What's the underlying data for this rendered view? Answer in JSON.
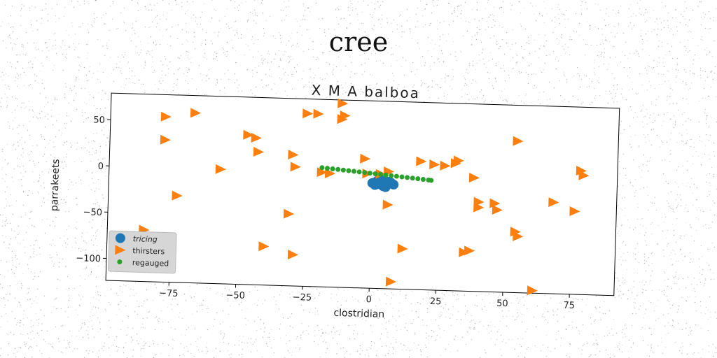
{
  "suptitle": "cree",
  "chart_data": {
    "type": "scatter",
    "title": "X M A balboa",
    "xlabel": "clostridian",
    "ylabel": "parrakeets",
    "xlim": [
      -95,
      88
    ],
    "ylim": [
      -117,
      72
    ],
    "xticks": [
      -75,
      -50,
      -25,
      0,
      25,
      50,
      75
    ],
    "xtick_labels": [
      "−75",
      "−50",
      "−25",
      "0",
      "25",
      "50",
      "75"
    ],
    "yticks": [
      -100,
      -50,
      0,
      50
    ],
    "ytick_labels": [
      "−100",
      "−50",
      "0",
      "50"
    ],
    "grid": false,
    "legend_position": "lower-left",
    "series": [
      {
        "name": "tricing",
        "marker": "circle",
        "color": "#1f77b4",
        "x": [
          0,
          1,
          2,
          3,
          4,
          5,
          6,
          7,
          8,
          2,
          4,
          6,
          1,
          3,
          5,
          7
        ],
        "y": [
          -10,
          -9,
          -11,
          -10,
          -8,
          -12,
          -10,
          -9,
          -11,
          -7,
          -13,
          -8,
          -12,
          -6,
          -14,
          -10
        ]
      },
      {
        "name": "thirsters",
        "marker": "triangle-right",
        "color": "#ff7f0e",
        "x": [
          -78,
          -67,
          -78,
          -47,
          -44,
          -43,
          -57,
          -73,
          -30,
          -29,
          -31,
          -40,
          -29,
          -85,
          -25,
          -21,
          -12,
          -12,
          -11,
          -19,
          -16,
          -3,
          -2,
          3,
          6,
          6,
          12,
          18,
          23,
          27,
          31,
          32,
          35,
          37,
          38,
          40,
          40,
          46,
          47,
          54,
          54,
          55,
          68,
          76,
          78,
          79,
          8,
          61
        ],
        "y": [
          55,
          60,
          30,
          38,
          35,
          20,
          0,
          -30,
          18,
          5,
          -46,
          -82,
          -90,
          -68,
          63,
          63,
          75,
          58,
          62,
          0,
          -1,
          16,
          0,
          0,
          3,
          -33,
          -80,
          15,
          12,
          11,
          14,
          17,
          -82,
          -80,
          -1,
          -27,
          -33,
          -28,
          -35,
          40,
          -58,
          -63,
          -25,
          -34,
          10,
          5,
          -116,
          -121
        ]
      },
      {
        "name": "regauged",
        "marker": "point",
        "color": "#2ca02c",
        "x": [
          -19,
          -17,
          -15,
          -13,
          -11,
          -9,
          -7,
          -5,
          -3,
          -1,
          1,
          3,
          5,
          7,
          9,
          11,
          13,
          15,
          17,
          19,
          21,
          22
        ],
        "y": [
          5,
          4.5,
          4,
          3.6,
          3.1,
          2.6,
          2.1,
          1.6,
          1.1,
          0.6,
          0.1,
          -0.4,
          -0.9,
          -1.4,
          -1.9,
          -2.4,
          -2.9,
          -3.4,
          -3.9,
          -4.4,
          -4.9,
          -5.2
        ]
      }
    ]
  }
}
